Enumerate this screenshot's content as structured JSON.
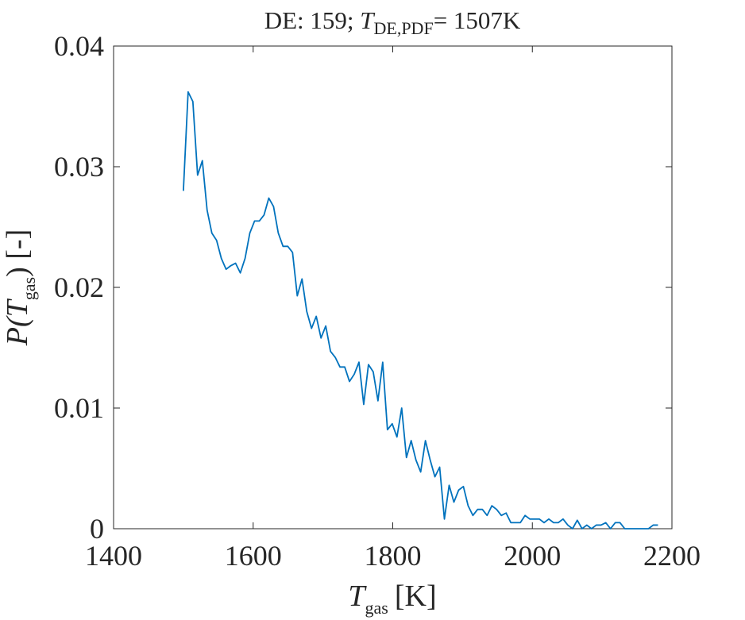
{
  "chart_data": {
    "type": "line",
    "title": {
      "prefix": "DE: 159;",
      "symbol": "T",
      "subscript": "DE,PDF",
      "suffix": "= 1507K"
    },
    "xlabel": {
      "symbol": "T",
      "subscript": "gas",
      "unit": "[K]"
    },
    "ylabel": {
      "prefix": "P(",
      "symbol": "T",
      "subscript": "gas",
      "suffix": ") [-]"
    },
    "xlim": [
      1400,
      2200
    ],
    "xticks": [
      1400,
      1600,
      1800,
      2000,
      2200
    ],
    "ylim": [
      0,
      0.04
    ],
    "yticks": [
      0,
      0.01,
      0.02,
      0.03,
      0.04
    ],
    "grid": false,
    "series": [
      {
        "color": "#0072bd",
        "x": [
          1500,
          1506.8,
          1513.6,
          1520.4,
          1527.2,
          1534,
          1540.8,
          1547.6,
          1554.4,
          1561.2,
          1568,
          1574.8,
          1581.6,
          1588.4,
          1595.2,
          1602,
          1608.8,
          1615.6,
          1622.4,
          1629.2,
          1636,
          1642.8,
          1649.6,
          1656.4,
          1663.2,
          1670,
          1676.8,
          1683.6,
          1690.4,
          1697.2,
          1704,
          1710.8,
          1717.6,
          1724.4,
          1731.2,
          1738,
          1744.8,
          1751.6,
          1758.4,
          1765.2,
          1772,
          1778.8,
          1785.6,
          1792.4,
          1799.2,
          1806,
          1812.8,
          1819.6,
          1826.4,
          1833.2,
          1840,
          1846.8,
          1853.6,
          1860.4,
          1867.2,
          1874,
          1880.8,
          1887.6,
          1894.4,
          1901.2,
          1908,
          1914.8,
          1921.6,
          1928.4,
          1935.2,
          1942,
          1948.8,
          1955.6,
          1962.4,
          1969.2,
          1976,
          1982.8,
          1989.6,
          1996.4,
          2003.2,
          2010,
          2016.8,
          2023.6,
          2030.4,
          2037.2,
          2044,
          2050.8,
          2057.6,
          2064.4,
          2071.2,
          2078,
          2084.8,
          2091.6,
          2098.4,
          2105.2,
          2112,
          2118.8,
          2125.6,
          2132.4,
          2139.2,
          2146,
          2152.8,
          2159.6,
          2166.4,
          2173.2,
          2180
        ],
        "values": [
          0.028,
          0.0362,
          0.0354,
          0.0293,
          0.0305,
          0.0264,
          0.0245,
          0.0239,
          0.0224,
          0.0215,
          0.0218,
          0.022,
          0.0212,
          0.0224,
          0.0245,
          0.0255,
          0.0255,
          0.026,
          0.0274,
          0.0267,
          0.0245,
          0.0234,
          0.0234,
          0.0229,
          0.0193,
          0.0207,
          0.018,
          0.0166,
          0.0176,
          0.0158,
          0.0168,
          0.0147,
          0.0142,
          0.0134,
          0.0134,
          0.0122,
          0.0128,
          0.0138,
          0.0103,
          0.0136,
          0.013,
          0.0106,
          0.0138,
          0.0082,
          0.0087,
          0.0076,
          0.01,
          0.0059,
          0.0073,
          0.0057,
          0.0047,
          0.0073,
          0.0057,
          0.0043,
          0.0051,
          0.0008,
          0.0036,
          0.0022,
          0.0032,
          0.0035,
          0.0019,
          0.0011,
          0.0016,
          0.0016,
          0.0011,
          0.0019,
          0.0016,
          0.0011,
          0.0013,
          0.0005,
          0.0005,
          0.0005,
          0.0011,
          0.0008,
          0.0008,
          0.0008,
          0.0005,
          0.0008,
          0.0005,
          0.0005,
          0.0008,
          0.0003,
          0,
          0.0007,
          0,
          0.0003,
          0,
          0.0003,
          0.0003,
          0.0005,
          0,
          0.0005,
          0.0005,
          0,
          0,
          0,
          0,
          0,
          0,
          0.0003,
          0.0003
        ]
      }
    ]
  }
}
